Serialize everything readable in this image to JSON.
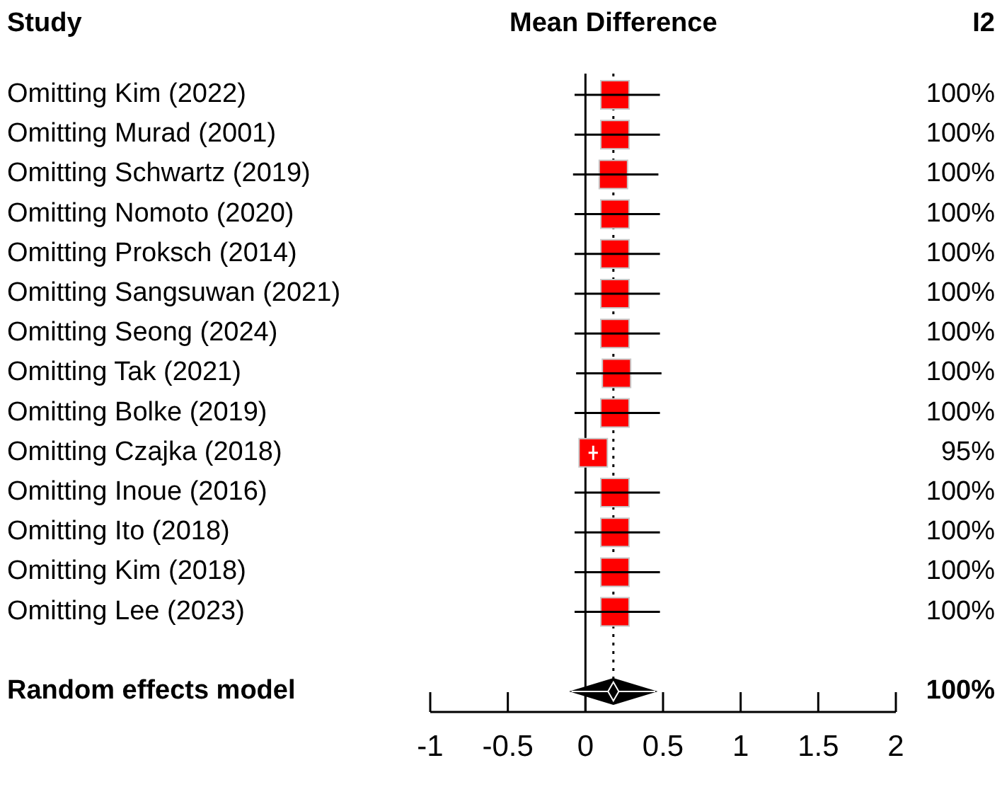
{
  "chart_data": {
    "type": "scatter",
    "orientation": "horizontal",
    "xlabel": "Mean Difference",
    "ylabel": "Study",
    "categories": [
      "Omitting Kim (2022)",
      "Omitting Murad (2001)",
      "Omitting Schwartz (2019)",
      "Omitting Nomoto (2020)",
      "Omitting Proksch (2014)",
      "Omitting Sangsuwan (2021)",
      "Omitting Seong (2024)",
      "Omitting Tak (2021)",
      "Omitting Bolke (2019)",
      "Omitting Czajka (2018)",
      "Omitting Inoue (2016)",
      "Omitting Ito (2018)",
      "Omitting Kim (2018)",
      "Omitting Lee (2023)",
      "Random effects model"
    ],
    "series": [
      {
        "color": "#ff0000",
        "marker": "square",
        "values": [
          0.19,
          0.19,
          0.18,
          0.19,
          0.19,
          0.19,
          0.19,
          0.2,
          0.19,
          0.05,
          0.19,
          0.19,
          0.19,
          0.19,
          null
        ],
        "errors": [
          [
            -0.07,
            0.48
          ],
          [
            -0.07,
            0.48
          ],
          [
            -0.08,
            0.47
          ],
          [
            -0.07,
            0.48
          ],
          [
            -0.07,
            0.48
          ],
          [
            -0.07,
            0.48
          ],
          [
            -0.07,
            0.48
          ],
          [
            -0.06,
            0.49
          ],
          [
            -0.07,
            0.48
          ],
          [
            0.02,
            0.08
          ],
          [
            -0.07,
            0.48
          ],
          [
            -0.07,
            0.48
          ],
          [
            -0.07,
            0.48
          ],
          [
            -0.07,
            0.48
          ],
          null
        ]
      },
      {
        "color": "#000000",
        "marker": "diamond",
        "values": [
          null,
          null,
          null,
          null,
          null,
          null,
          null,
          null,
          null,
          null,
          null,
          null,
          null,
          null,
          0.18
        ],
        "errors": [
          null,
          null,
          null,
          null,
          null,
          null,
          null,
          null,
          null,
          null,
          null,
          null,
          null,
          null,
          [
            -0.09,
            0.45
          ]
        ]
      }
    ],
    "xlim": [
      -1,
      2
    ],
    "xticks": [
      -1,
      -0.5,
      0,
      0.5,
      1,
      1.5,
      2
    ],
    "ref_lines": [
      {
        "axis": "x",
        "value": 0,
        "line_style": "solid"
      },
      {
        "axis": "x",
        "value": 0.18,
        "line_style": "dotted"
      }
    ],
    "annotations": [
      "I2",
      "100%",
      "100%",
      "100%",
      "100%",
      "100%",
      "100%",
      "100%",
      "100%",
      "100%",
      "95%",
      "100%",
      "100%",
      "100%",
      "100%",
      "100%"
    ]
  }
}
